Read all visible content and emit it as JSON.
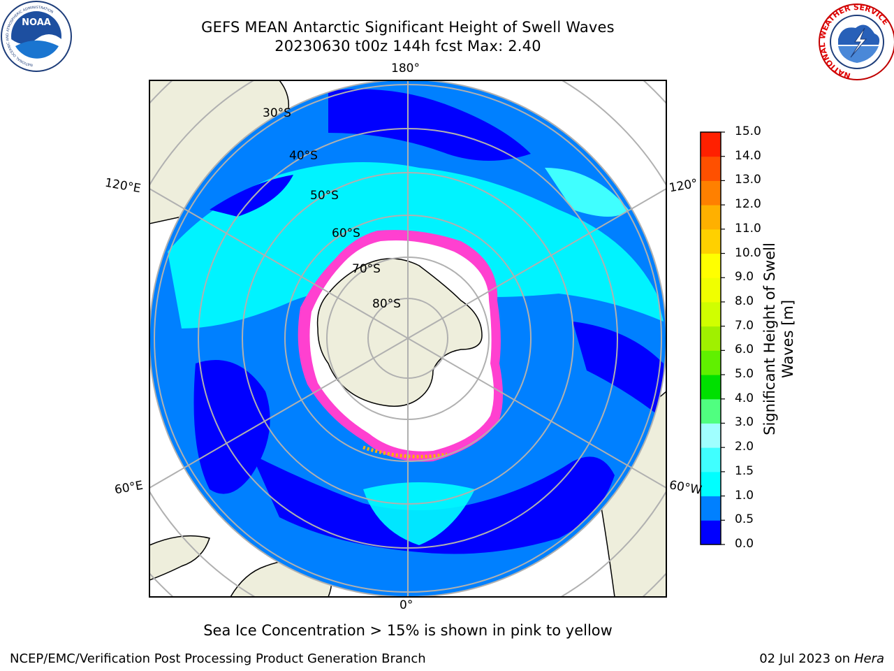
{
  "title": {
    "line1": "GEFS MEAN Antarctic Significant Height of Swell Waves",
    "line2": "20230630 t00z 144h fcst   Max: 2.40"
  },
  "logos": {
    "noaa": {
      "name": "NOAA",
      "ring_text": "NATIONAL OCEANIC AND ATMOSPHERIC ADMINISTRATION",
      "bottom_text": "U.S. DEPARTMENT OF COMMERCE"
    },
    "nws": {
      "ring_text": "NATIONAL WEATHER SERVICE"
    }
  },
  "map": {
    "projection": "south-polar-stereographic",
    "lon_labels": [
      "180°",
      "120°E",
      "120°",
      "60°E",
      "60°W",
      "0°"
    ],
    "lat_labels": [
      "30°S",
      "40°S",
      "50°S",
      "60°S",
      "70°S",
      "80°S"
    ],
    "grid": true
  },
  "colorbar": {
    "title_line1": "Significant Height of Swell",
    "title_line2": "Waves [m]",
    "ticks": [
      "15.0",
      "14.0",
      "13.0",
      "12.0",
      "11.0",
      "10.0",
      "9.0",
      "8.0",
      "7.0",
      "6.0",
      "5.0",
      "4.0",
      "3.0",
      "2.0",
      "1.5",
      "1.0",
      "0.5",
      "0.0"
    ],
    "colors": [
      "#0000ff",
      "#0080ff",
      "#00ffff",
      "#40ffff",
      "#a0ffff",
      "#50ff80",
      "#00e000",
      "#60f000",
      "#a0f000",
      "#d0ff00",
      "#f0ff00",
      "#ffff00",
      "#ffd000",
      "#ffb000",
      "#ff8000",
      "#ff5000",
      "#ff2000"
    ]
  },
  "footer": {
    "note": "Sea Ice Concentration > 15% is shown in pink to yellow",
    "credit": "NCEP/EMC/Verification Post Processing Product Generation Branch",
    "date": "02 Jul 2023 on ",
    "machine": "Hera"
  }
}
